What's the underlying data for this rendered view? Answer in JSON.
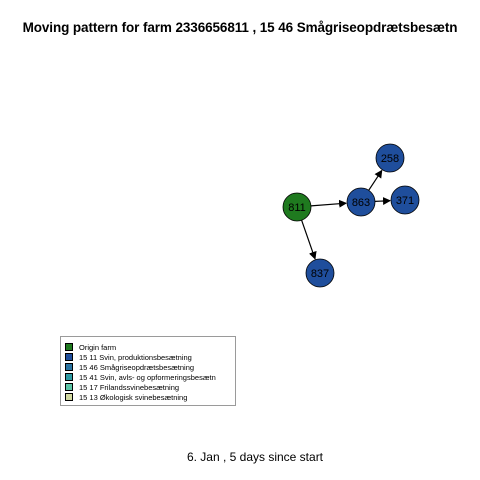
{
  "title": "Moving pattern for farm 2336656811 , 15 46 Smågriseopdrætsbesætn",
  "subtitle": "6. Jan ,  5 days since start",
  "colors": {
    "origin": "#1f7a1f",
    "type_1511": "#1f4e9c",
    "type_1546": "#2a73a0",
    "type_1541": "#2e9aa3",
    "type_1517": "#5cc4a6",
    "type_1513": "#d2d9a0",
    "edge": "#000000",
    "node_border": "#000000"
  },
  "legend": [
    {
      "label": "Origin farm",
      "color": "#1f7a1f"
    },
    {
      "label": "15 11 Svin, produktionsbesætning",
      "color": "#1f4e9c"
    },
    {
      "label": "15 46 Smågriseopdrætsbesætning",
      "color": "#2a73a0"
    },
    {
      "label": "15 41 Svin, avls- og opformeringsbesætn",
      "color": "#2e9aa3"
    },
    {
      "label": "15 17 Frilandssvinebesætning",
      "color": "#5cc4a6"
    },
    {
      "label": "15 13 Økologisk svinebesætning",
      "color": "#d2d9a0"
    }
  ],
  "nodes": [
    {
      "id": "811",
      "label": "811",
      "type": "origin"
    },
    {
      "id": "863",
      "label": "863",
      "type": "type_1511"
    },
    {
      "id": "258",
      "label": "258",
      "type": "type_1511"
    },
    {
      "id": "371",
      "label": "371",
      "type": "type_1511"
    },
    {
      "id": "837",
      "label": "837",
      "type": "type_1511"
    }
  ],
  "edges": [
    {
      "from": "811",
      "to": "863"
    },
    {
      "from": "811",
      "to": "837"
    },
    {
      "from": "863",
      "to": "258"
    },
    {
      "from": "863",
      "to": "371"
    }
  ]
}
